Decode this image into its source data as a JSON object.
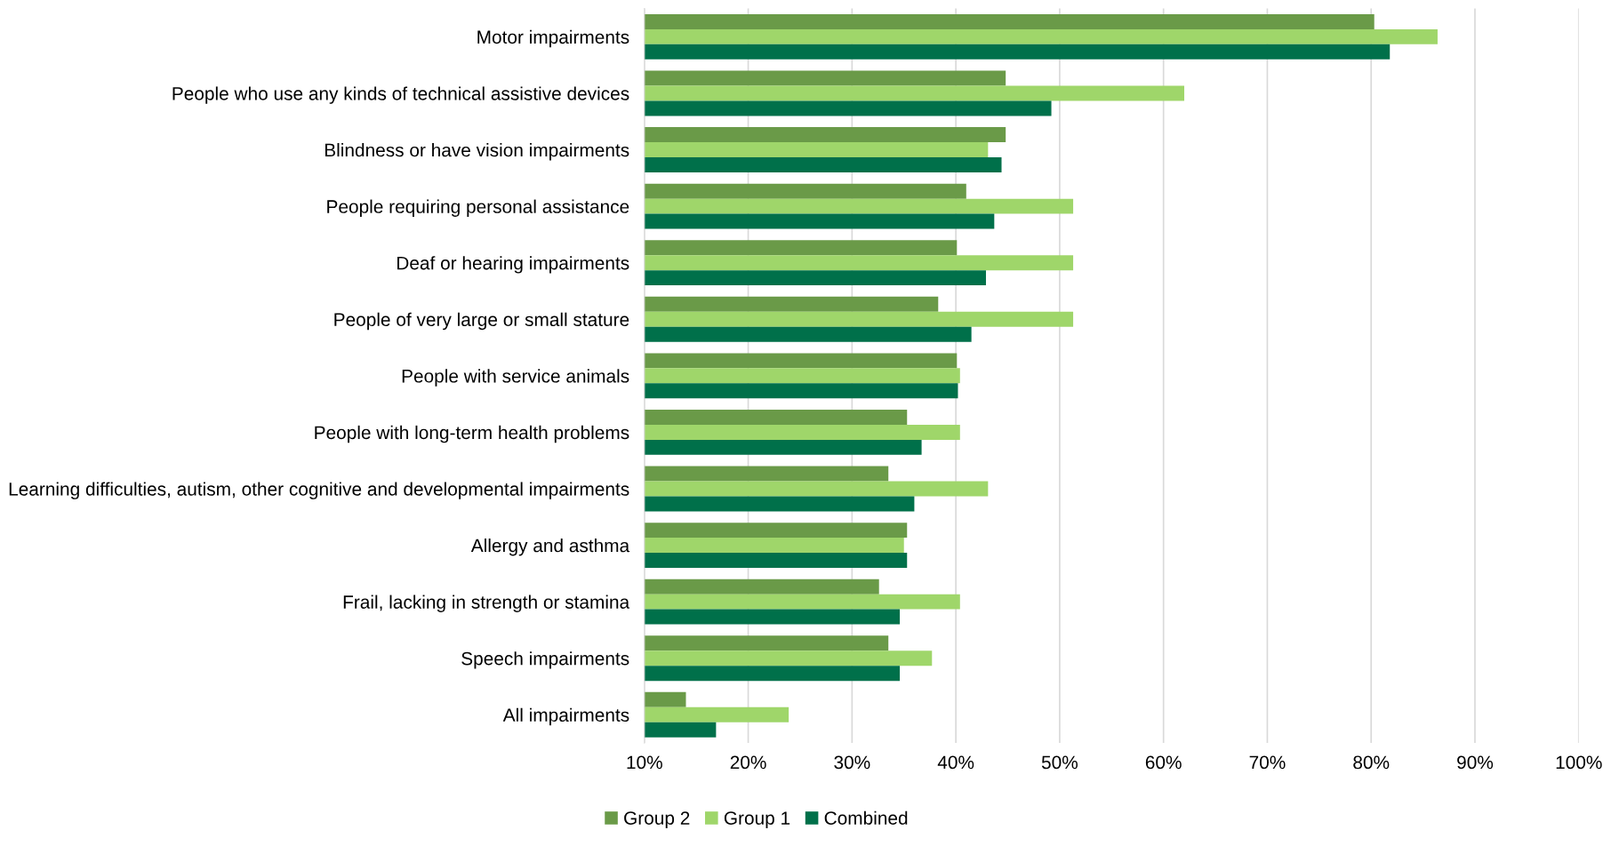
{
  "chart_data": {
    "type": "bar",
    "orientation": "horizontal",
    "categories": [
      "Motor impairments",
      "People who use any kinds of technical assistive devices",
      "Blindness or have vision impairments",
      "People requiring personal assistance",
      "Deaf or hearing impairments",
      "People of very large or small stature",
      "People with service animals",
      "People with long-term health problems",
      "Learning difficulties, autism, other cognitive and developmental impairments",
      "Allergy and asthma",
      "Frail, lacking in strength or stamina",
      "Speech impairments",
      "All impairments"
    ],
    "series": [
      {
        "name": "Group 2",
        "color": "#6a9a48",
        "values": [
          80.3,
          44.8,
          44.8,
          41.0,
          40.1,
          38.3,
          40.1,
          35.3,
          33.5,
          35.3,
          32.6,
          33.5,
          14.0
        ]
      },
      {
        "name": "Group 1",
        "color": "#9fd66a",
        "values": [
          86.4,
          62.0,
          43.1,
          51.3,
          51.3,
          51.3,
          40.4,
          40.4,
          43.1,
          35.0,
          40.4,
          37.7,
          23.9
        ]
      },
      {
        "name": "Combined",
        "color": "#00704a",
        "values": [
          81.8,
          49.2,
          44.4,
          43.7,
          42.9,
          41.5,
          40.2,
          36.7,
          36.0,
          35.3,
          34.6,
          34.6,
          16.9
        ]
      }
    ],
    "xlim": [
      10,
      100
    ],
    "xticks": [
      {
        "value": 10,
        "label": "10%"
      },
      {
        "value": 20,
        "label": "20%"
      },
      {
        "value": 30,
        "label": "30%"
      },
      {
        "value": 40,
        "label": "40%"
      },
      {
        "value": 50,
        "label": "50%"
      },
      {
        "value": 60,
        "label": "60%"
      },
      {
        "value": 70,
        "label": "70%"
      },
      {
        "value": 80,
        "label": "80%"
      },
      {
        "value": 90,
        "label": "90%"
      },
      {
        "value": 100,
        "label": "100%"
      }
    ],
    "grid": "x",
    "legend": "bottom"
  }
}
